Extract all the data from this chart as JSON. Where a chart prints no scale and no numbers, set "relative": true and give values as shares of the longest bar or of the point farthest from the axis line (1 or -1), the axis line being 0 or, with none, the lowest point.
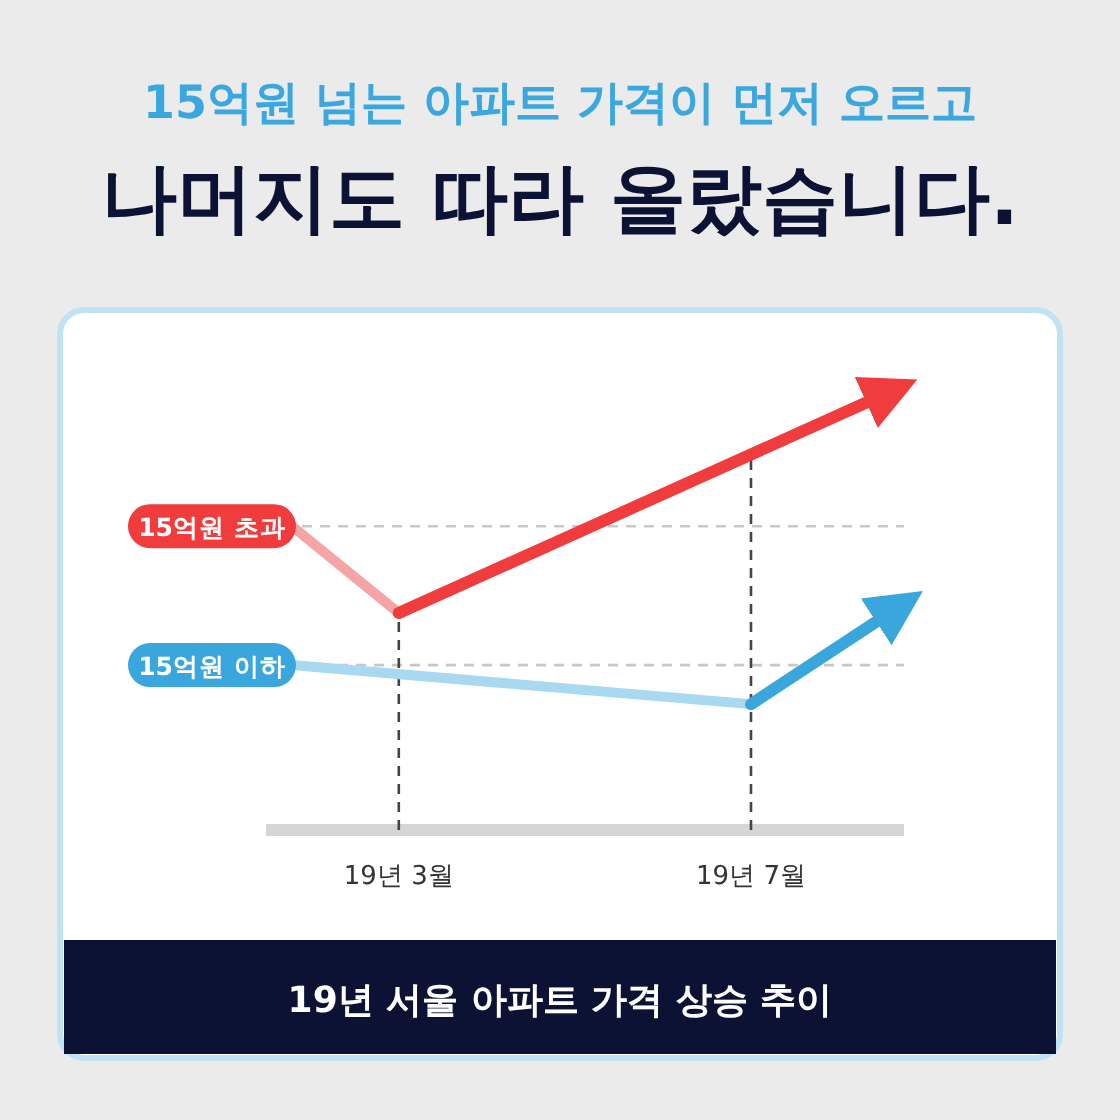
{
  "chart_data": {
    "type": "line",
    "title": "15억원 넘는 아파트 가격이 먼저 오르고",
    "subtitle": "나머지도 따라 올랐습니다.",
    "annotations": [
      "19년 서울 아파트 가격 상승 추이"
    ],
    "relative": true,
    "xlim": [
      "--01-14",
      "--08-23"
    ],
    "xticks": [
      {
        "value": "--03-01",
        "label": "19년 3월"
      },
      {
        "value": "--07-01",
        "label": "19년 7월"
      }
    ],
    "series": [
      {
        "name": "15억원 초과",
        "color": "#f5a5a5",
        "x": [
          "--01-23",
          "--03-01"
        ],
        "values": [
          0.7,
          0.5
        ]
      },
      {
        "color": "#f03c3c",
        "x": [
          "--03-01",
          "--08-15"
        ],
        "values": [
          0.5,
          1.0
        ]
      },
      {
        "name": "15억원 이하",
        "color": "#a9d9f0",
        "x": [
          "--01-23",
          "--07-01"
        ],
        "values": [
          0.38,
          0.29
        ]
      },
      {
        "color": "#39a7dd",
        "x": [
          "--07-01",
          "--08-18"
        ],
        "values": [
          0.29,
          0.5
        ]
      }
    ],
    "ref_lines": [
      {
        "axis": "y",
        "value": 0.7,
        "color": "#c8c8c8",
        "line_style": "dashed"
      },
      {
        "axis": "y",
        "value": 0.38,
        "color": "#c8c8c8",
        "line_style": "dashed"
      },
      {
        "axis": "x",
        "value": "--03-01",
        "color": "#444444",
        "line_style": "dashed"
      },
      {
        "axis": "x",
        "value": "--07-01",
        "color": "#444444",
        "line_style": "dashed"
      }
    ]
  }
}
